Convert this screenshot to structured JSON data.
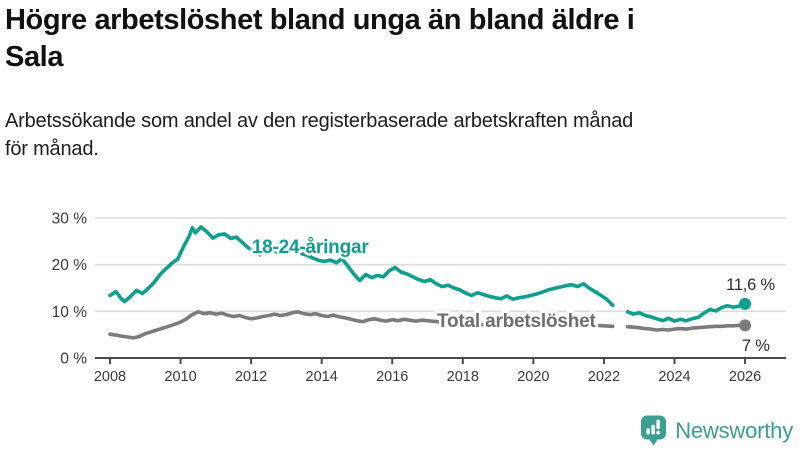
{
  "header": {
    "title": "Högre arbetslöshet bland unga än bland äldre i Sala",
    "title_lines": [
      "Högre arbetslöshet bland unga än bland äldre i",
      "Sala"
    ],
    "subtitle": "Arbetssökande som andel av den registerbaserade arbetskraften månad för månad.",
    "subtitle_lines": [
      "Arbetssökande som andel av den registerbaserade arbetskraften månad",
      "för månad."
    ]
  },
  "footer": {
    "logo_text": "Newsworthy",
    "logo_icon": "bar-chart-speech-bubble-icon",
    "logo_color": "#3b9f91"
  },
  "colors": {
    "young_series": "#0e9f8f",
    "total_series": "#7c7c7c",
    "total_label": "#6e6e6e",
    "value_label": "#2d2d2d",
    "axis": "#4a4a4a",
    "tick_text": "#3a3a3a",
    "gridline": "#dcdcdc"
  },
  "chart_data": {
    "type": "line",
    "title": "Högre arbetslöshet bland unga än bland äldre i Sala",
    "subtitle": "Arbetssökande som andel av den registerbaserade arbetskraften månad för månad.",
    "xlabel": "",
    "ylabel": "",
    "unit": "%",
    "grid": "horizontal",
    "legend_position": "inline-labels",
    "xlim": [
      2007.6,
      2027.2
    ],
    "ylim": [
      0,
      32
    ],
    "x_ticks": [
      2008,
      2010,
      2012,
      2014,
      2016,
      2018,
      2020,
      2022,
      2024,
      2026
    ],
    "y_ticks": [
      {
        "value": 0,
        "label": "0 %"
      },
      {
        "value": 10,
        "label": "10 %"
      },
      {
        "value": 20,
        "label": "20 %"
      },
      {
        "value": 30,
        "label": "30 %"
      }
    ],
    "series": [
      {
        "name": "Total arbetslöshet",
        "color": "#7c7c7c",
        "end_value": 7.0,
        "end_value_label": "7 %",
        "end_dot": true,
        "segments": [
          [
            [
              2008.0,
              5.1
            ],
            [
              2008.17,
              4.9
            ],
            [
              2008.33,
              4.7
            ],
            [
              2008.5,
              4.5
            ],
            [
              2008.67,
              4.3
            ],
            [
              2008.83,
              4.6
            ],
            [
              2009.0,
              5.2
            ],
            [
              2009.25,
              5.8
            ],
            [
              2009.5,
              6.4
            ],
            [
              2009.75,
              7.0
            ],
            [
              2010.0,
              7.7
            ],
            [
              2010.17,
              8.4
            ],
            [
              2010.33,
              9.3
            ],
            [
              2010.5,
              9.9
            ],
            [
              2010.67,
              9.5
            ],
            [
              2010.83,
              9.7
            ],
            [
              2011.0,
              9.4
            ],
            [
              2011.17,
              9.6
            ],
            [
              2011.33,
              9.2
            ],
            [
              2011.5,
              8.9
            ],
            [
              2011.67,
              9.1
            ],
            [
              2011.83,
              8.7
            ],
            [
              2012.0,
              8.4
            ],
            [
              2012.17,
              8.6
            ],
            [
              2012.33,
              8.9
            ],
            [
              2012.5,
              9.1
            ],
            [
              2012.67,
              9.4
            ],
            [
              2012.83,
              9.1
            ],
            [
              2013.0,
              9.3
            ],
            [
              2013.17,
              9.7
            ],
            [
              2013.33,
              9.9
            ],
            [
              2013.5,
              9.5
            ],
            [
              2013.67,
              9.3
            ],
            [
              2013.83,
              9.5
            ],
            [
              2014.0,
              9.1
            ],
            [
              2014.17,
              8.9
            ],
            [
              2014.33,
              9.2
            ],
            [
              2014.5,
              8.8
            ],
            [
              2014.67,
              8.6
            ],
            [
              2014.83,
              8.3
            ],
            [
              2015.0,
              8.0
            ],
            [
              2015.17,
              7.8
            ],
            [
              2015.33,
              8.2
            ],
            [
              2015.5,
              8.4
            ],
            [
              2015.67,
              8.1
            ],
            [
              2015.83,
              7.9
            ],
            [
              2016.0,
              8.2
            ],
            [
              2016.17,
              8.0
            ],
            [
              2016.33,
              8.3
            ],
            [
              2016.5,
              8.1
            ],
            [
              2016.67,
              7.9
            ],
            [
              2016.83,
              8.1
            ],
            [
              2017.0,
              8.0
            ],
            [
              2017.25,
              7.8
            ],
            [
              2017.5,
              7.6
            ],
            [
              2017.75,
              7.7
            ],
            [
              2018.0,
              7.4
            ],
            [
              2018.25,
              7.3
            ],
            [
              2018.5,
              7.2
            ],
            [
              2018.75,
              7.0
            ],
            [
              2019.0,
              6.9
            ],
            [
              2019.25,
              7.0
            ],
            [
              2019.5,
              7.1
            ],
            [
              2019.75,
              7.2
            ],
            [
              2020.0,
              7.5
            ],
            [
              2020.25,
              7.9
            ],
            [
              2020.5,
              8.1
            ],
            [
              2020.75,
              7.9
            ],
            [
              2021.0,
              7.7
            ],
            [
              2021.25,
              7.4
            ],
            [
              2021.5,
              7.2
            ],
            [
              2021.75,
              7.0
            ],
            [
              2022.0,
              6.9
            ],
            [
              2022.25,
              6.8
            ]
          ],
          [
            [
              2022.67,
              6.7
            ],
            [
              2022.83,
              6.6
            ],
            [
              2023.0,
              6.5
            ],
            [
              2023.17,
              6.3
            ],
            [
              2023.33,
              6.2
            ],
            [
              2023.5,
              6.0
            ],
            [
              2023.67,
              6.1
            ],
            [
              2023.83,
              6.0
            ],
            [
              2024.0,
              6.2
            ],
            [
              2024.17,
              6.3
            ],
            [
              2024.33,
              6.2
            ],
            [
              2024.5,
              6.4
            ],
            [
              2024.67,
              6.5
            ],
            [
              2024.83,
              6.6
            ],
            [
              2025.0,
              6.7
            ],
            [
              2025.17,
              6.8
            ],
            [
              2025.33,
              6.8
            ],
            [
              2025.5,
              6.9
            ],
            [
              2025.67,
              6.9
            ],
            [
              2025.83,
              7.0
            ],
            [
              2026.0,
              7.0
            ]
          ]
        ]
      },
      {
        "name": "18-24-åringar",
        "color": "#0e9f8f",
        "end_value": 11.6,
        "end_value_label": "11,6 %",
        "end_dot": true,
        "segments": [
          [
            [
              2008.0,
              13.4
            ],
            [
              2008.17,
              14.2
            ],
            [
              2008.33,
              12.6
            ],
            [
              2008.42,
              12.1
            ],
            [
              2008.58,
              13.2
            ],
            [
              2008.75,
              14.5
            ],
            [
              2008.92,
              13.8
            ],
            [
              2009.08,
              14.9
            ],
            [
              2009.25,
              16.2
            ],
            [
              2009.42,
              17.9
            ],
            [
              2009.58,
              19.1
            ],
            [
              2009.75,
              20.3
            ],
            [
              2009.92,
              21.2
            ],
            [
              2010.08,
              23.8
            ],
            [
              2010.25,
              26.2
            ],
            [
              2010.33,
              27.9
            ],
            [
              2010.42,
              26.8
            ],
            [
              2010.58,
              28.1
            ],
            [
              2010.75,
              27.0
            ],
            [
              2010.92,
              25.7
            ],
            [
              2011.08,
              26.4
            ],
            [
              2011.25,
              26.6
            ],
            [
              2011.42,
              25.6
            ],
            [
              2011.58,
              25.9
            ],
            [
              2011.75,
              24.8
            ],
            [
              2011.92,
              23.6
            ],
            [
              2012.08,
              23.0
            ],
            [
              2012.25,
              22.1
            ],
            [
              2012.42,
              23.2
            ],
            [
              2012.58,
              23.5
            ],
            [
              2012.75,
              22.6
            ],
            [
              2012.92,
              22.9
            ],
            [
              2013.08,
              23.4
            ],
            [
              2013.25,
              23.0
            ],
            [
              2013.42,
              22.4
            ],
            [
              2013.58,
              22.0
            ],
            [
              2013.75,
              21.4
            ],
            [
              2013.92,
              20.9
            ],
            [
              2014.08,
              20.7
            ],
            [
              2014.25,
              21.0
            ],
            [
              2014.42,
              20.4
            ],
            [
              2014.58,
              21.3
            ],
            [
              2014.75,
              19.6
            ],
            [
              2014.92,
              17.9
            ],
            [
              2015.08,
              16.6
            ],
            [
              2015.25,
              17.9
            ],
            [
              2015.42,
              17.2
            ],
            [
              2015.58,
              17.7
            ],
            [
              2015.75,
              17.4
            ],
            [
              2015.92,
              18.7
            ],
            [
              2016.08,
              19.4
            ],
            [
              2016.25,
              18.4
            ],
            [
              2016.42,
              18.0
            ],
            [
              2016.58,
              17.4
            ],
            [
              2016.75,
              16.8
            ],
            [
              2016.92,
              16.4
            ],
            [
              2017.08,
              16.8
            ],
            [
              2017.25,
              15.9
            ],
            [
              2017.42,
              15.3
            ],
            [
              2017.58,
              15.6
            ],
            [
              2017.75,
              15.0
            ],
            [
              2017.92,
              14.6
            ],
            [
              2018.08,
              13.9
            ],
            [
              2018.25,
              13.4
            ],
            [
              2018.42,
              14.0
            ],
            [
              2018.58,
              13.6
            ],
            [
              2018.75,
              13.2
            ],
            [
              2018.92,
              12.9
            ],
            [
              2019.08,
              12.7
            ],
            [
              2019.25,
              13.3
            ],
            [
              2019.42,
              12.6
            ],
            [
              2019.58,
              12.9
            ],
            [
              2019.75,
              13.1
            ],
            [
              2019.92,
              13.4
            ],
            [
              2020.08,
              13.7
            ],
            [
              2020.25,
              14.1
            ],
            [
              2020.42,
              14.6
            ],
            [
              2020.58,
              14.9
            ],
            [
              2020.75,
              15.2
            ],
            [
              2020.92,
              15.5
            ],
            [
              2021.08,
              15.7
            ],
            [
              2021.25,
              15.3
            ],
            [
              2021.42,
              15.9
            ],
            [
              2021.58,
              15.0
            ],
            [
              2021.75,
              14.2
            ],
            [
              2021.92,
              13.4
            ],
            [
              2022.08,
              12.6
            ],
            [
              2022.25,
              11.3
            ]
          ],
          [
            [
              2022.67,
              9.9
            ],
            [
              2022.83,
              9.4
            ],
            [
              2023.0,
              9.7
            ],
            [
              2023.17,
              9.1
            ],
            [
              2023.33,
              8.8
            ],
            [
              2023.5,
              8.4
            ],
            [
              2023.67,
              8.0
            ],
            [
              2023.83,
              8.5
            ],
            [
              2024.0,
              7.9
            ],
            [
              2024.17,
              8.3
            ],
            [
              2024.33,
              8.0
            ],
            [
              2024.5,
              8.4
            ],
            [
              2024.67,
              8.7
            ],
            [
              2024.83,
              9.6
            ],
            [
              2025.0,
              10.4
            ],
            [
              2025.17,
              10.1
            ],
            [
              2025.33,
              10.8
            ],
            [
              2025.5,
              11.2
            ],
            [
              2025.67,
              10.9
            ],
            [
              2025.83,
              11.1
            ],
            [
              2026.0,
              11.6
            ]
          ]
        ]
      }
    ],
    "annotations": [
      {
        "name": "series-label-young",
        "text": "18-24-åringar",
        "year": 2012.02,
        "pct": 22.5,
        "anchor": "start",
        "color": "#0e9f8f",
        "size": 19,
        "bold": true
      },
      {
        "name": "series-label-total",
        "text": "Total arbetslöshet",
        "year": 2017.27,
        "pct": 6.6,
        "anchor": "start",
        "color": "#6e6e6e",
        "size": 19,
        "bold": true
      },
      {
        "name": "value-label-young",
        "text": "11,6 %",
        "year": 2026.85,
        "pct": 14.6,
        "anchor": "end",
        "color": "#2d2d2d",
        "size": 16.5,
        "bold": false
      },
      {
        "name": "value-label-total",
        "text": "7 %",
        "year": 2026.7,
        "pct": 1.5,
        "anchor": "end",
        "color": "#2d2d2d",
        "size": 16.5,
        "bold": false
      }
    ]
  }
}
